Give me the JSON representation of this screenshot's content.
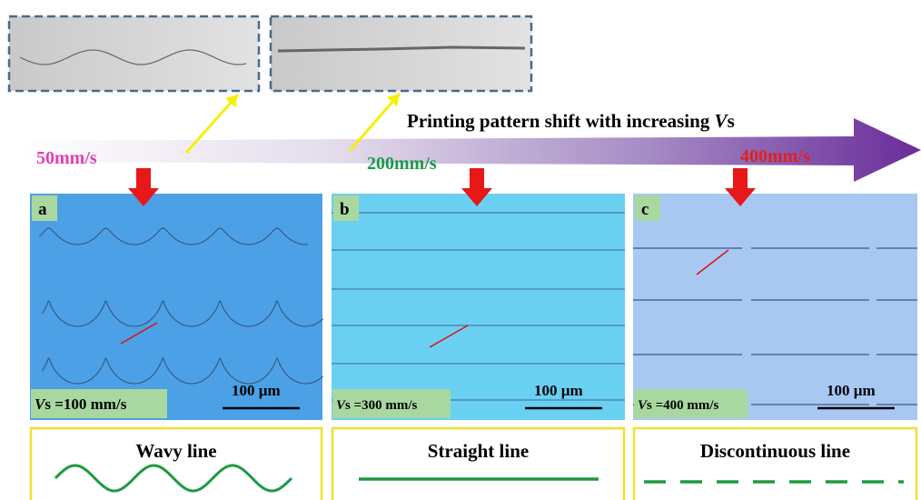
{
  "header": {
    "title": {
      "text": "Printing pattern shift with increasing ",
      "variable": "V",
      "suffix": "s"
    }
  },
  "speeds": [
    "50mm/s",
    "200mm/s",
    "400mm/s"
  ],
  "panels": [
    {
      "label": "a",
      "variable": "V",
      "speed": "s =100 mm/s",
      "scale": "100 µm",
      "caption": "Wavy line"
    },
    {
      "label": "b",
      "variable": "V",
      "speed": "s =300 mm/s",
      "scale": "100 µm",
      "caption": "Straight line"
    },
    {
      "label": "c",
      "variable": "V",
      "speed": "s =400 mm/s",
      "scale": "100 µm",
      "caption": "Discontinuous line"
    }
  ]
}
